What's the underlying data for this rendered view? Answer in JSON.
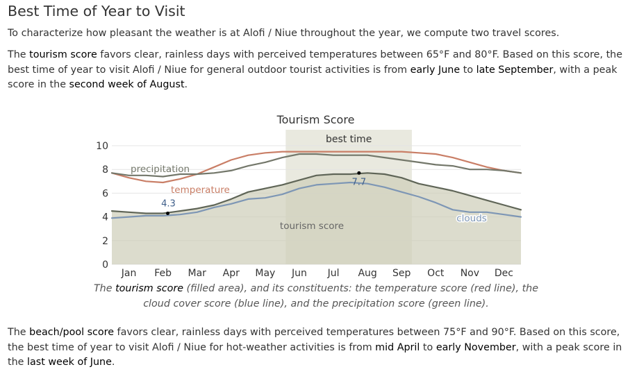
{
  "heading": "Best Time of Year to Visit",
  "intro": "To characterize how pleasant the weather is at Alofi / Niue throughout the year, we compute two travel scores.",
  "tourism_paragraph": {
    "t1": "The ",
    "k1": "tourism score",
    "t2": " favors clear, rainless days with perceived temperatures between 65°F and 80°F. Based on this score, the best time of year to visit Alofi / Niue for general outdoor tourist activities is from ",
    "k2": "early June",
    "t3": " to ",
    "k3": "late September",
    "t4": ", with a peak score in the ",
    "k4": "second week of August",
    "t5": "."
  },
  "caption": {
    "t1": "The ",
    "k1": "tourism score",
    "t2": " (filled area), and its constituents: the temperature score (red line), the cloud cover score (blue line), and the precipitation score (green line)."
  },
  "beach_paragraph": {
    "t1": "The ",
    "k1": "beach/pool score",
    "t2": " favors clear, rainless days with perceived temperatures between 75°F and 90°F. Based on this score, the best time of year to visit Alofi / Niue for hot-weather activities is from ",
    "k2": "mid April",
    "t3": " to ",
    "k3": "early November",
    "t4": ", with a peak score in the ",
    "k4": "last week of June",
    "t5": "."
  },
  "chart_data": {
    "type": "area",
    "title": "Tourism Score",
    "ylim": [
      0,
      10
    ],
    "yticks": [
      "0",
      "2",
      "4",
      "6",
      "8",
      "10"
    ],
    "months": [
      "Jan",
      "Feb",
      "Mar",
      "Apr",
      "May",
      "Jun",
      "Jul",
      "Aug",
      "Sep",
      "Oct",
      "Nov",
      "Dec"
    ],
    "x": [
      0,
      0.5,
      1,
      1.5,
      2,
      2.5,
      3,
      3.5,
      4,
      4.5,
      5,
      5.5,
      6,
      6.5,
      7,
      7.5,
      8,
      8.5,
      9,
      9.5,
      10,
      10.5,
      11,
      11.5,
      12
    ],
    "best_time": {
      "label": "best time",
      "start": 5.1,
      "end": 8.8
    },
    "series": [
      {
        "name": "tourism score",
        "color": "#5f6557",
        "fill": "#cdcdb8",
        "values": [
          4.5,
          4.4,
          4.3,
          4.3,
          4.5,
          4.7,
          5.0,
          5.5,
          6.1,
          6.4,
          6.7,
          7.1,
          7.5,
          7.6,
          7.6,
          7.7,
          7.6,
          7.3,
          6.8,
          6.5,
          6.2,
          5.8,
          5.4,
          5.0,
          4.6
        ]
      },
      {
        "name": "temperature",
        "color": "#c97e66",
        "values": [
          7.7,
          7.3,
          7.0,
          6.9,
          7.2,
          7.6,
          8.2,
          8.8,
          9.2,
          9.4,
          9.5,
          9.5,
          9.5,
          9.5,
          9.5,
          9.5,
          9.5,
          9.5,
          9.4,
          9.3,
          9.0,
          8.6,
          8.2,
          7.9,
          7.7
        ]
      },
      {
        "name": "clouds",
        "color": "#7d96b5",
        "values": [
          3.9,
          4.0,
          4.1,
          4.1,
          4.2,
          4.4,
          4.8,
          5.1,
          5.5,
          5.6,
          5.9,
          6.4,
          6.7,
          6.8,
          6.9,
          6.8,
          6.5,
          6.1,
          5.7,
          5.2,
          4.6,
          4.4,
          4.4,
          4.2,
          4.0
        ]
      },
      {
        "name": "precipitation",
        "color": "#73776a",
        "values": [
          7.7,
          7.5,
          7.5,
          7.4,
          7.6,
          7.6,
          7.7,
          7.9,
          8.3,
          8.6,
          9.0,
          9.3,
          9.3,
          9.2,
          9.2,
          9.2,
          9.0,
          8.8,
          8.6,
          8.4,
          8.3,
          8.0,
          8.0,
          7.9,
          7.7
        ]
      }
    ],
    "annotations": [
      {
        "text": "4.3",
        "x": 1.64,
        "y": 4.3
      },
      {
        "text": "7.7",
        "x": 7.25,
        "y": 7.7
      }
    ],
    "series_labels": [
      {
        "text": "precipitation",
        "color": "#73776a"
      },
      {
        "text": "temperature",
        "color": "#c97e66"
      },
      {
        "text": "tourism score",
        "color": "#666666"
      },
      {
        "text": "clouds",
        "color": "#7d96b5"
      }
    ]
  }
}
